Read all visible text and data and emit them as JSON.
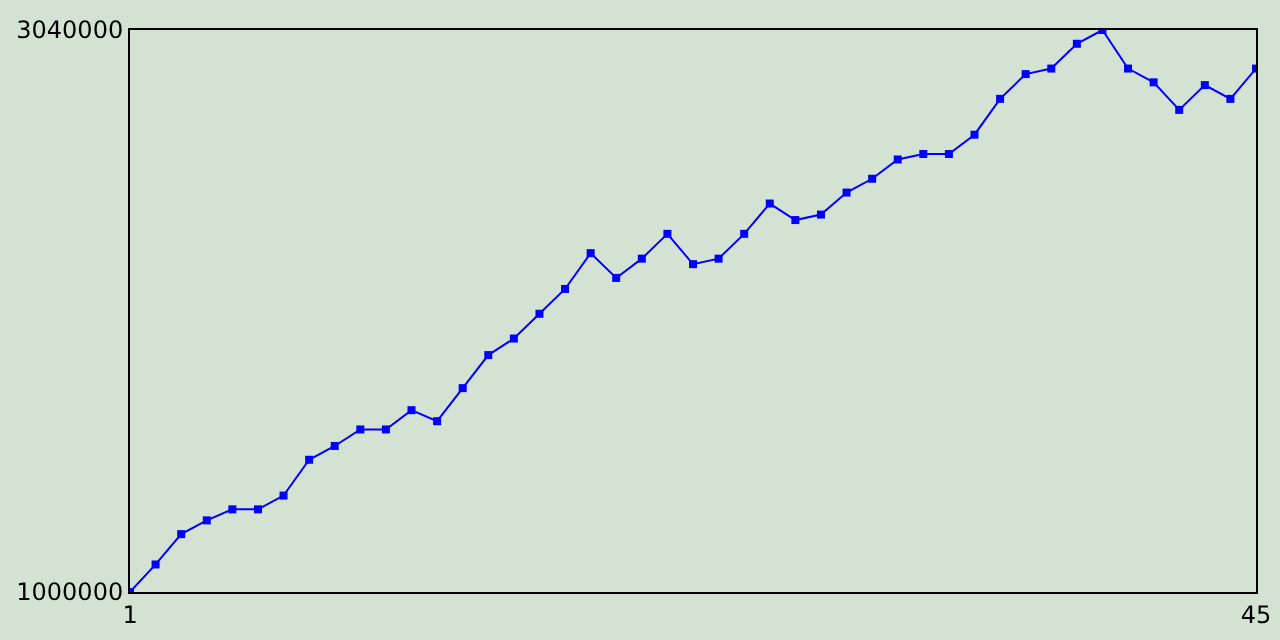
{
  "chart_data": {
    "type": "line",
    "x": [
      1,
      2,
      3,
      4,
      5,
      6,
      7,
      8,
      9,
      10,
      11,
      12,
      13,
      14,
      15,
      16,
      17,
      18,
      19,
      20,
      21,
      22,
      23,
      24,
      25,
      26,
      27,
      28,
      29,
      30,
      31,
      32,
      33,
      34,
      35,
      36,
      37,
      38,
      39,
      40,
      41,
      42,
      43,
      44,
      45
    ],
    "series": [
      {
        "color": "#0000ff",
        "values": [
          1000000,
          1100000,
          1210000,
          1260000,
          1300000,
          1300000,
          1350000,
          1480000,
          1530000,
          1590000,
          1590000,
          1660000,
          1620000,
          1740000,
          1860000,
          1920000,
          2010000,
          2100000,
          2230000,
          2140000,
          2210000,
          2300000,
          2190000,
          2210000,
          2300000,
          2410000,
          2350000,
          2370000,
          2450000,
          2500000,
          2570000,
          2590000,
          2590000,
          2660000,
          2790000,
          2880000,
          2900000,
          2990000,
          3040000,
          2900000,
          2850000,
          2750000,
          2840000,
          2790000,
          2900000
        ]
      }
    ],
    "xlim": [
      1,
      45
    ],
    "xticks": [
      1,
      45
    ],
    "ylim": [
      1000000,
      3040000
    ],
    "yticks": [
      1000000,
      3040000
    ],
    "marker": "square",
    "line_style": "solid"
  }
}
